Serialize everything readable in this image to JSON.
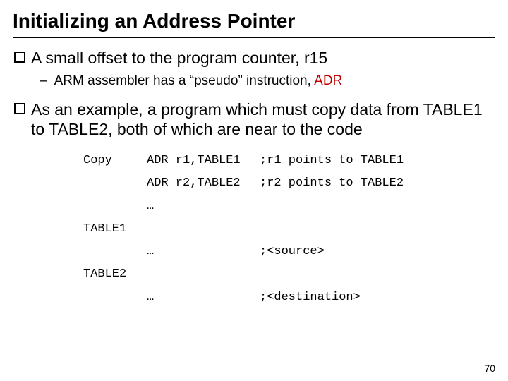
{
  "title": "Initializing an Address Pointer",
  "bullets": {
    "b1": "A small offset to the program counter, r15",
    "b1_sub_pre": "ARM assembler has a “pseudo” instruction, ",
    "b1_sub_adr": "ADR",
    "b2": "As an example, a program which must copy data from TABLE1 to TABLE2, both of which are near to the code"
  },
  "code": {
    "r1_label": "Copy",
    "r1_instr": "ADR r1,TABLE1",
    "r1_comment": ";r1 points to TABLE1",
    "r2_label": "",
    "r2_instr": "ADR r2,TABLE2",
    "r2_comment": ";r2 points to TABLE2",
    "r3_label": "",
    "r3_instr": "…",
    "r3_comment": "",
    "r4_label": "TABLE1",
    "r4_instr": "",
    "r4_comment": "",
    "r5_label": "",
    "r5_instr": "…",
    "r5_comment": ";<source>",
    "r6_label": "TABLE2",
    "r6_instr": "",
    "r6_comment": "",
    "r7_label": "",
    "r7_instr": "…",
    "r7_comment": ";<destination>"
  },
  "page_number": "70",
  "colors": {
    "adr_red": "#c00000",
    "text": "#000000",
    "bg": "#ffffff"
  }
}
